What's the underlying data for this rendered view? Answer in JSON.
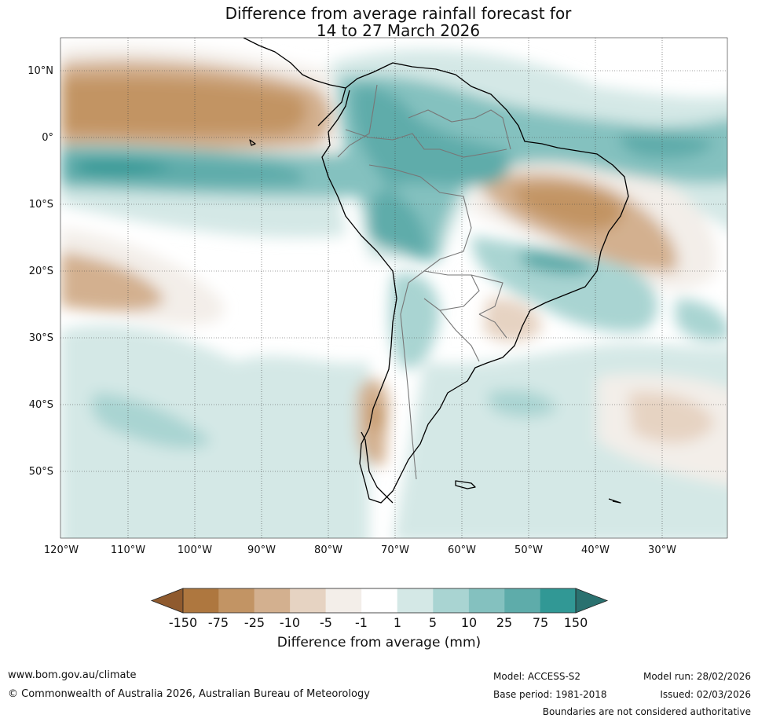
{
  "title": {
    "line1": "Difference from average rainfall forecast for",
    "line2": "14 to 27 March 2026"
  },
  "map": {
    "lat_labels": [
      "10°N",
      "0°",
      "10°S",
      "20°S",
      "30°S",
      "40°S",
      "50°S"
    ],
    "lon_labels": [
      "120°W",
      "110°W",
      "100°W",
      "90°W",
      "80°W",
      "70°W",
      "60°W",
      "50°W",
      "40°W",
      "30°W"
    ]
  },
  "legend": {
    "ticks": [
      "-150",
      "-75",
      "-25",
      "-10",
      "-5",
      "-1",
      "1",
      "5",
      "10",
      "25",
      "75",
      "150"
    ],
    "colors": [
      "#8f5a2e",
      "#ae773f",
      "#c29464",
      "#d3b08f",
      "#e6d3c2",
      "#f3eee9",
      "#ffffff",
      "#d4e8e6",
      "#a9d4d2",
      "#84c1bf",
      "#5eacaa",
      "#319895",
      "#2a716f"
    ],
    "title": "Difference from average (mm)"
  },
  "footer": {
    "website": "www.bom.gov.au/climate",
    "copyright": "© Commonwealth of Australia 2026, Australian Bureau of Meteorology",
    "model": "Model: ACCESS-S2",
    "base_period": "Base period: 1981-2018",
    "model_run": "Model run: 28/02/2026",
    "issued": "Issued: 02/03/2026",
    "disclaimer": "Boundaries are not considered authoritative"
  }
}
